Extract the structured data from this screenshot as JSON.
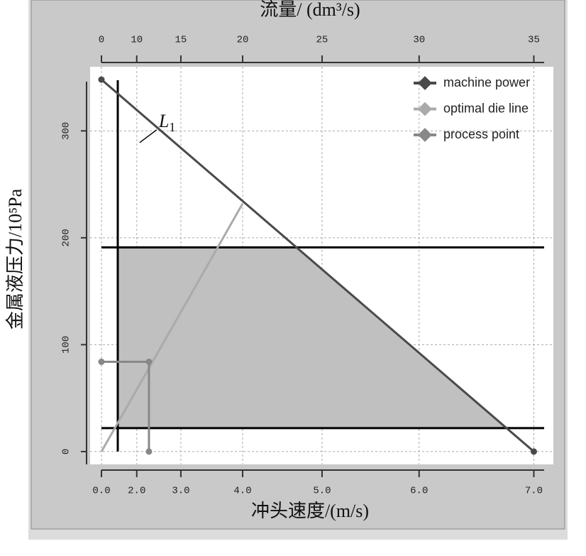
{
  "chart_data": {
    "type": "line",
    "x_title": "冲头速度/(m/s)",
    "x2_title": "流量/ (dm³/s)",
    "y_title": "金属液压力/10⁵Pa",
    "xscale": "square",
    "xlim": [
      0,
      7.1
    ],
    "xticks": [
      {
        "value": 0,
        "label": "0.0"
      },
      {
        "value": 2,
        "label": "2.0"
      },
      {
        "value": 3,
        "label": "3.0"
      },
      {
        "value": 4,
        "label": "4.0"
      },
      {
        "value": 5,
        "label": "5.0"
      },
      {
        "value": 6,
        "label": "6.0"
      },
      {
        "value": 7,
        "label": "7.0"
      }
    ],
    "x2lim": [
      0,
      35.5
    ],
    "x2ticks": [
      0,
      10,
      15,
      20,
      25,
      30,
      35
    ],
    "ylim": [
      -12,
      360
    ],
    "yticks": [
      0,
      100,
      200,
      300
    ],
    "grid": true,
    "legend": "top-right",
    "series": [
      {
        "name": "machine power",
        "color": "#4a4a4a",
        "x": [
          0,
          7.0
        ],
        "values": [
          348,
          0
        ],
        "markers": true
      },
      {
        "name": "optimal die line",
        "color": "#aaaaaa",
        "x": [
          0,
          4.0
        ],
        "values": [
          0,
          232
        ],
        "markers": false
      },
      {
        "name": "process point",
        "color": "#888888",
        "x": [
          0,
          2.32,
          2.32
        ],
        "values": [
          84,
          84,
          0
        ],
        "markers": true
      }
    ],
    "limit_lines": [
      {
        "axis": "x",
        "value": 1.36
      },
      {
        "axis": "y",
        "value": 191
      },
      {
        "axis": "y",
        "value": 22
      }
    ],
    "shade_color": "#c0c0c0",
    "annotation": {
      "text": "L",
      "sub": "1",
      "x": 2.55,
      "value": 305
    }
  }
}
